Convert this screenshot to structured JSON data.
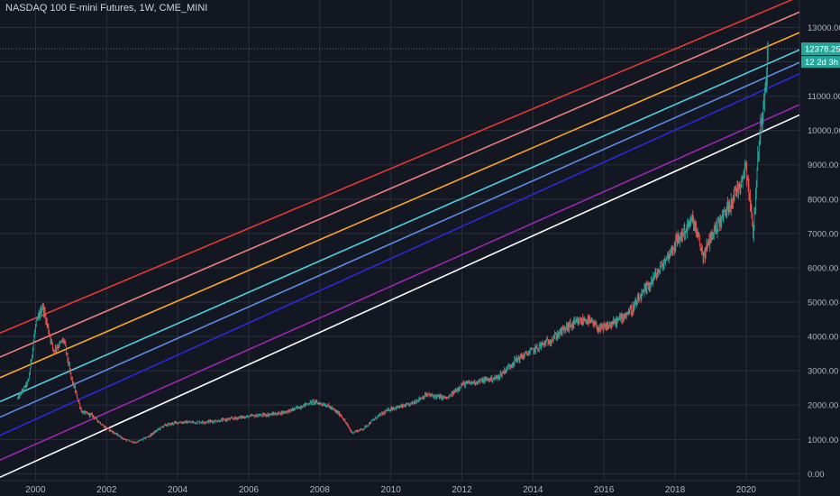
{
  "header": {
    "title": "NASDAQ 100 E-mini Futures, 1W, CME_MINI"
  },
  "price_badge": {
    "value": "12378.25",
    "countdown": "12 2d 3h",
    "color": "#26a69a"
  },
  "chart_data": {
    "type": "line",
    "title": "NASDAQ 100 E-mini Futures, 1W, CME_MINI",
    "xlabel": "",
    "ylabel": "",
    "xlim": [
      1999.0,
      2021.5
    ],
    "ylim": [
      -200,
      13800
    ],
    "x_ticks": [
      "2000",
      "2002",
      "2004",
      "2006",
      "2008",
      "2010",
      "2012",
      "2014",
      "2016",
      "2018",
      "2020"
    ],
    "y_ticks": [
      "13000.00",
      "12000.00",
      "11000.00",
      "10000.00",
      "9000.00",
      "8000.00",
      "7000.00",
      "6000.00",
      "5000.00",
      "4000.00",
      "3000.00",
      "2000.00",
      "1000.00",
      "0.00"
    ],
    "grid": true,
    "colors": {
      "up": "#26a69a",
      "down": "#ef5350",
      "background": "#131722",
      "grid": "#2a2e39"
    },
    "trend_lines": [
      {
        "color": "#e53935",
        "x": [
          1999.0,
          2021.5
        ],
        "y": [
          4100,
          13900
        ]
      },
      {
        "color": "#f08080",
        "x": [
          1999.0,
          2021.5
        ],
        "y": [
          3400,
          13450
        ]
      },
      {
        "color": "#ffa726",
        "x": [
          1999.0,
          2021.5
        ],
        "y": [
          2800,
          12850
        ]
      },
      {
        "color": "#4dd0e1",
        "x": [
          1999.0,
          2021.5
        ],
        "y": [
          2100,
          12350
        ]
      },
      {
        "color": "#5c8ee6",
        "x": [
          1999.0,
          2021.5
        ],
        "y": [
          1650,
          11980
        ]
      },
      {
        "color": "#2929d9",
        "x": [
          1999.0,
          2021.5
        ],
        "y": [
          1120,
          11650
        ]
      },
      {
        "color": "#9c27b0",
        "x": [
          1999.0,
          2021.5
        ],
        "y": [
          400,
          10750
        ]
      },
      {
        "color": "#ffffff",
        "x": [
          1999.0,
          2021.5
        ],
        "y": [
          -100,
          10450
        ]
      }
    ],
    "price_path": {
      "x": [
        1999.5,
        1999.8,
        2000.0,
        2000.2,
        2000.5,
        2000.8,
        2001.0,
        2001.3,
        2001.6,
        2001.9,
        2002.2,
        2002.5,
        2002.8,
        2003.2,
        2003.6,
        2004.0,
        2004.6,
        2005.2,
        2005.8,
        2006.3,
        2006.8,
        2007.2,
        2007.8,
        2008.2,
        2008.6,
        2008.9,
        2009.2,
        2009.6,
        2010.0,
        2010.5,
        2011.0,
        2011.6,
        2012.0,
        2012.5,
        2013.0,
        2013.5,
        2014.0,
        2014.5,
        2015.0,
        2015.5,
        2015.9,
        2016.3,
        2016.8,
        2017.2,
        2017.6,
        2018.0,
        2018.5,
        2018.8,
        2019.0,
        2019.4,
        2019.8,
        2020.0,
        2020.2,
        2020.35,
        2020.5,
        2020.62
      ],
      "y": [
        2200,
        2700,
        4300,
        4900,
        3600,
        3900,
        2800,
        1800,
        1700,
        1400,
        1200,
        1000,
        900,
        1100,
        1400,
        1500,
        1500,
        1550,
        1650,
        1700,
        1750,
        1850,
        2100,
        2000,
        1700,
        1200,
        1300,
        1650,
        1900,
        2000,
        2300,
        2200,
        2600,
        2700,
        2800,
        3300,
        3600,
        3900,
        4300,
        4500,
        4200,
        4400,
        4800,
        5400,
        6000,
        6700,
        7400,
        6300,
        6900,
        7600,
        8400,
        9000,
        7000,
        9500,
        11000,
        12378
      ]
    }
  }
}
